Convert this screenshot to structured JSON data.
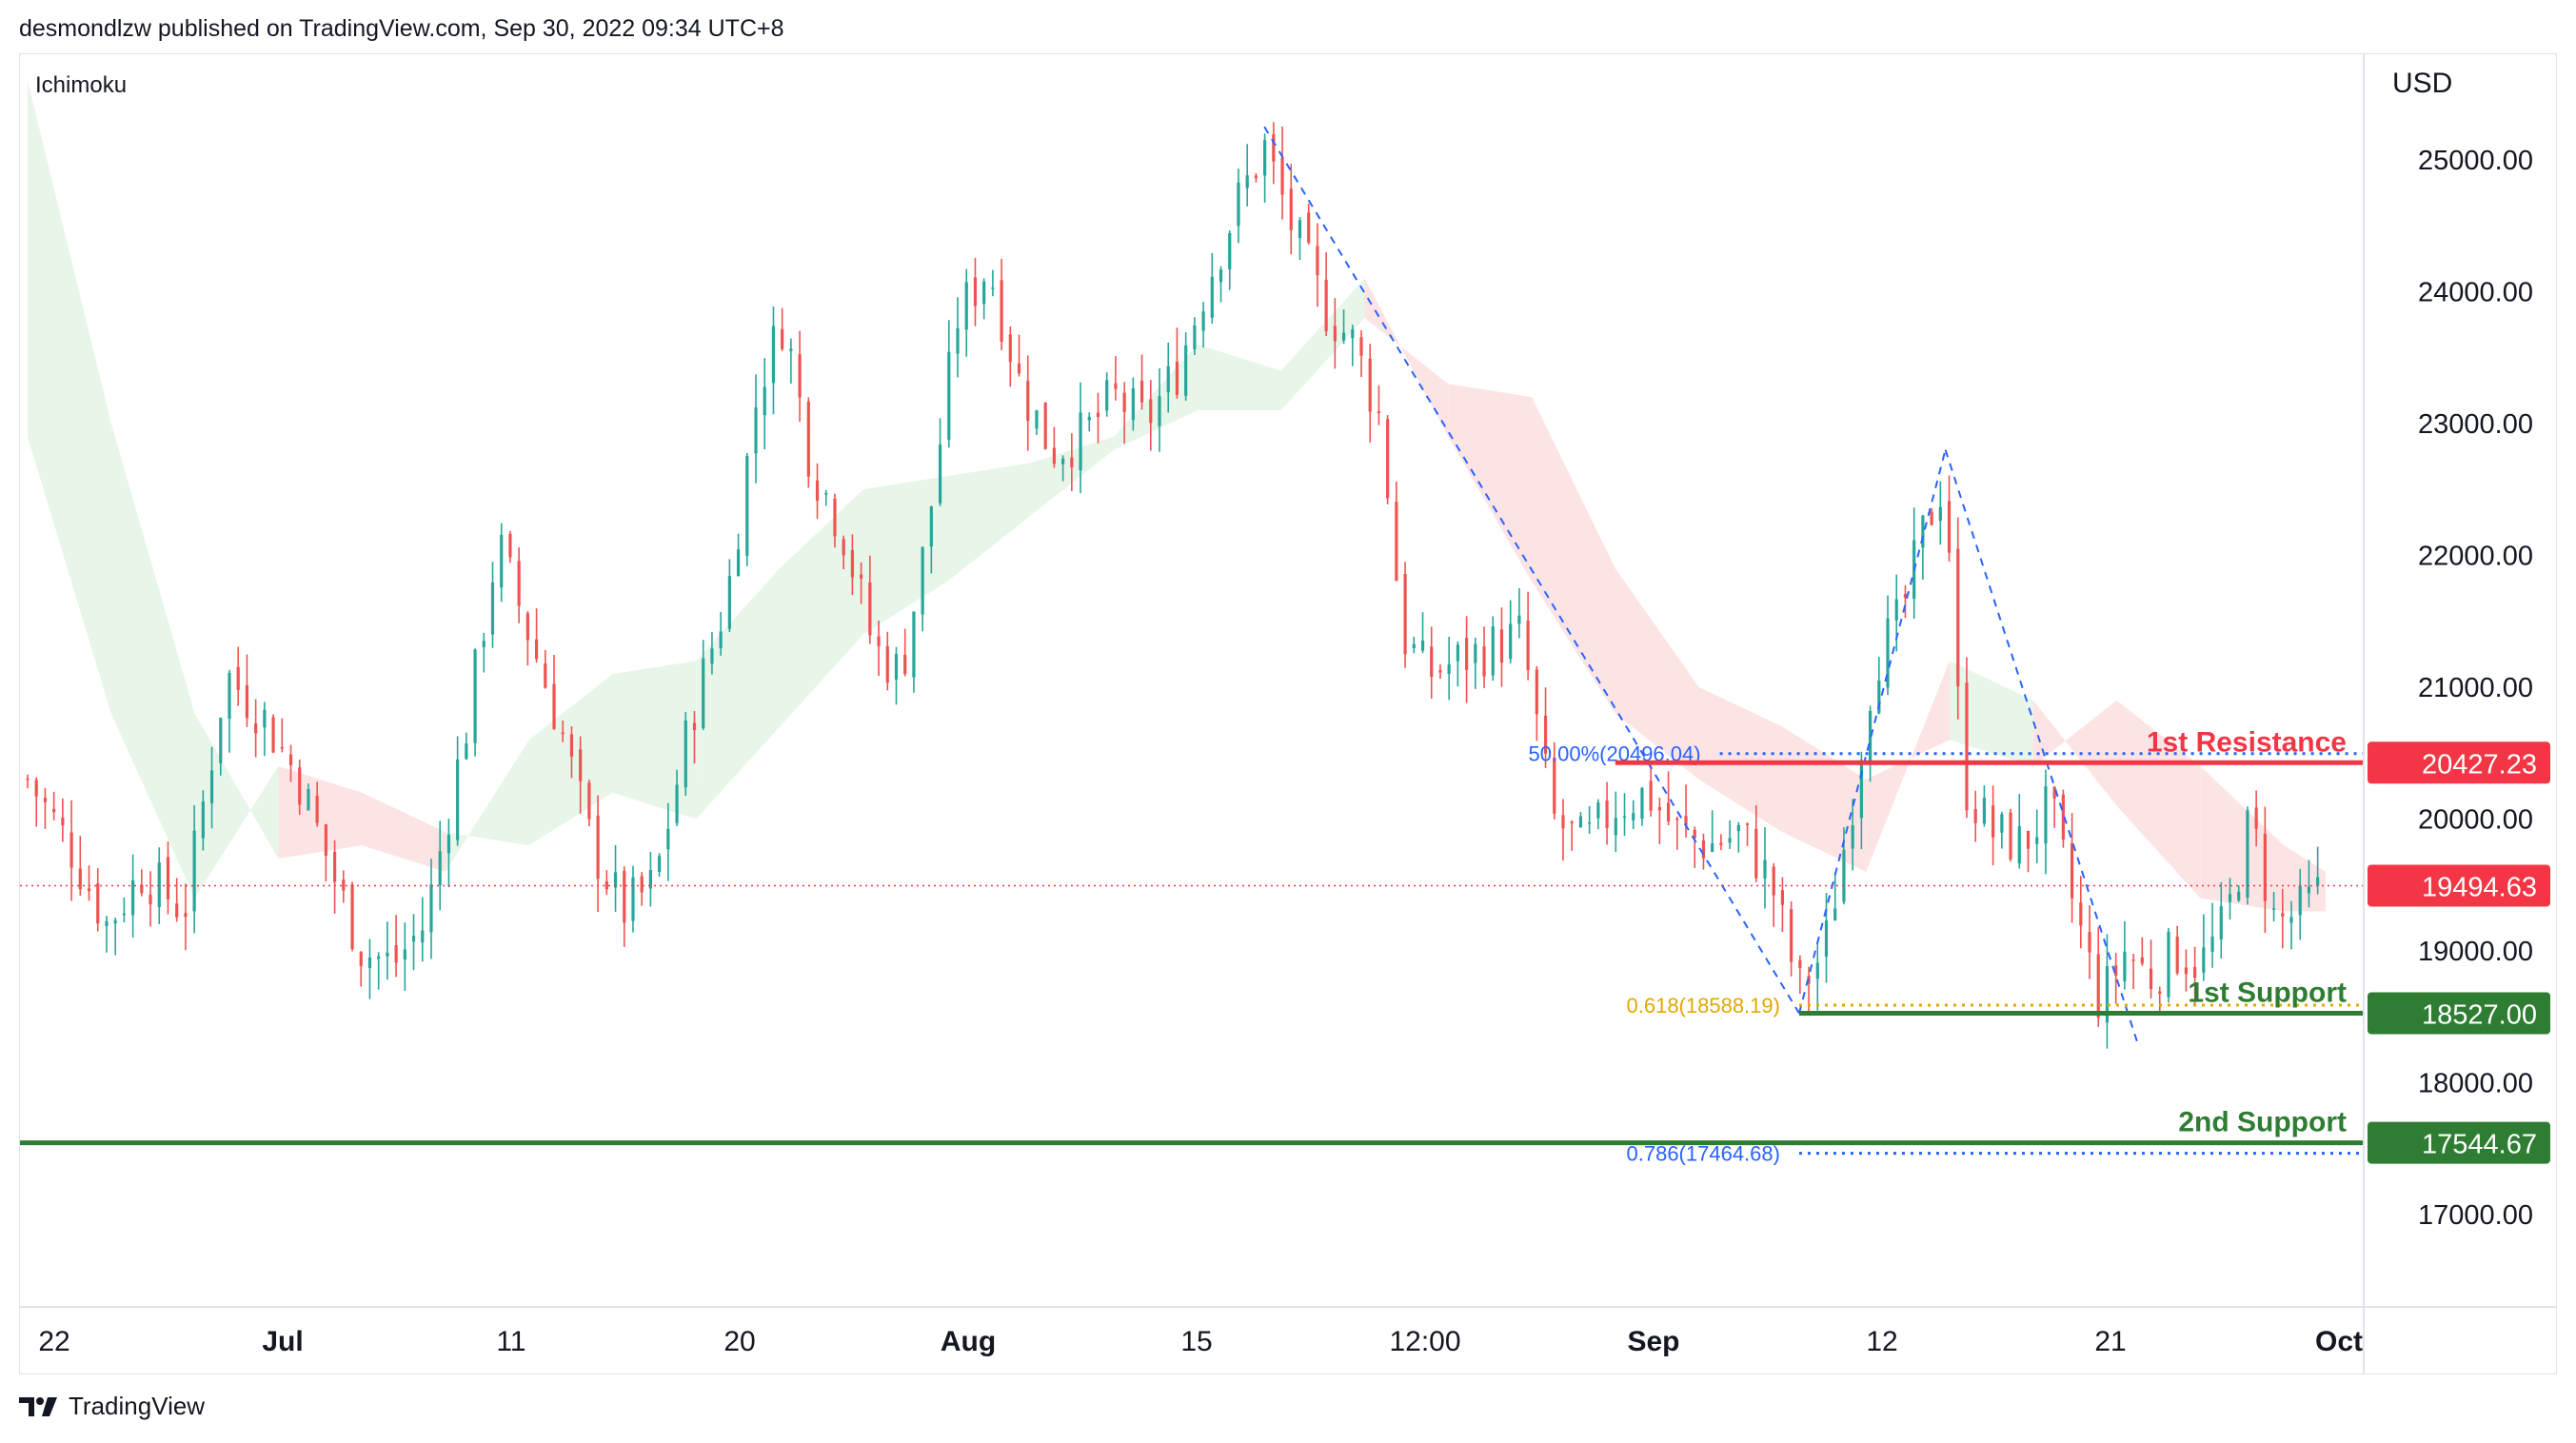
{
  "header": {
    "published_line": "desmondlzw published on TradingView.com, Sep 30, 2022 09:34 UTC+8"
  },
  "indicator": {
    "label": "Ichimoku"
  },
  "footer": {
    "brand": "TradingView"
  },
  "colors": {
    "up": "#26a69a",
    "down": "#ef5350",
    "resistance": "#f23645",
    "support": "#2e7d32",
    "fib_blue": "#2962ff",
    "fib_gold": "#e0a800",
    "cloud_bull": "#e8f5e9",
    "cloud_bear": "#fde4e4",
    "grid_text": "#131722",
    "current": "#f23645"
  },
  "chart_data": {
    "type": "candlestick",
    "symbol_currency": "USD",
    "ylim": [
      16300,
      25800
    ],
    "y_ticks": [
      {
        "value": 25000,
        "label": "25000.00"
      },
      {
        "value": 24000,
        "label": "24000.00"
      },
      {
        "value": 23000,
        "label": "23000.00"
      },
      {
        "value": 22000,
        "label": "22000.00"
      },
      {
        "value": 21000,
        "label": "21000.00"
      },
      {
        "value": 20000,
        "label": "20000.00"
      },
      {
        "value": 19000,
        "label": "19000.00"
      },
      {
        "value": 18000,
        "label": "18000.00"
      },
      {
        "value": 17000,
        "label": "17000.00"
      }
    ],
    "x_ticks": [
      {
        "label": "22",
        "bold": false
      },
      {
        "label": "Jul",
        "bold": true
      },
      {
        "label": "11",
        "bold": false
      },
      {
        "label": "20",
        "bold": false
      },
      {
        "label": "Aug",
        "bold": true
      },
      {
        "label": "15",
        "bold": false
      },
      {
        "label": "12:00",
        "bold": false
      },
      {
        "label": "Sep",
        "bold": true
      },
      {
        "label": "12",
        "bold": false
      },
      {
        "label": "21",
        "bold": false
      },
      {
        "label": "Oct",
        "bold": true
      }
    ],
    "price_path": [
      {
        "t": 0,
        "p": 20300
      },
      {
        "t": 20,
        "p": 19800
      },
      {
        "t": 38,
        "p": 19200
      },
      {
        "t": 55,
        "p": 19600
      },
      {
        "t": 75,
        "p": 19300
      },
      {
        "t": 95,
        "p": 21100
      },
      {
        "t": 112,
        "p": 20800
      },
      {
        "t": 130,
        "p": 20300
      },
      {
        "t": 148,
        "p": 19500
      },
      {
        "t": 160,
        "p": 19000
      },
      {
        "t": 175,
        "p": 18900
      },
      {
        "t": 190,
        "p": 19200
      },
      {
        "t": 210,
        "p": 20700
      },
      {
        "t": 225,
        "p": 22100
      },
      {
        "t": 240,
        "p": 21400
      },
      {
        "t": 255,
        "p": 20700
      },
      {
        "t": 270,
        "p": 19800
      },
      {
        "t": 285,
        "p": 19300
      },
      {
        "t": 300,
        "p": 19500
      },
      {
        "t": 318,
        "p": 20800
      },
      {
        "t": 335,
        "p": 21700
      },
      {
        "t": 350,
        "p": 23300
      },
      {
        "t": 362,
        "p": 23800
      },
      {
        "t": 375,
        "p": 22700
      },
      {
        "t": 390,
        "p": 22200
      },
      {
        "t": 405,
        "p": 21300
      },
      {
        "t": 418,
        "p": 21100
      },
      {
        "t": 430,
        "p": 22100
      },
      {
        "t": 445,
        "p": 23800
      },
      {
        "t": 460,
        "p": 24200
      },
      {
        "t": 475,
        "p": 23300
      },
      {
        "t": 490,
        "p": 22800
      },
      {
        "t": 505,
        "p": 22900
      },
      {
        "t": 520,
        "p": 23200
      },
      {
        "t": 535,
        "p": 23000
      },
      {
        "t": 550,
        "p": 23400
      },
      {
        "t": 565,
        "p": 24100
      },
      {
        "t": 580,
        "p": 24700
      },
      {
        "t": 592,
        "p": 25100
      },
      {
        "t": 605,
        "p": 24500
      },
      {
        "t": 620,
        "p": 23900
      },
      {
        "t": 635,
        "p": 23600
      },
      {
        "t": 648,
        "p": 23000
      },
      {
        "t": 658,
        "p": 21400
      },
      {
        "t": 670,
        "p": 21100
      },
      {
        "t": 685,
        "p": 21200
      },
      {
        "t": 700,
        "p": 21300
      },
      {
        "t": 715,
        "p": 21400
      },
      {
        "t": 730,
        "p": 20000
      },
      {
        "t": 745,
        "p": 19800
      },
      {
        "t": 760,
        "p": 20100
      },
      {
        "t": 775,
        "p": 20200
      },
      {
        "t": 790,
        "p": 19900
      },
      {
        "t": 805,
        "p": 19800
      },
      {
        "t": 820,
        "p": 19900
      },
      {
        "t": 835,
        "p": 19500
      },
      {
        "t": 848,
        "p": 18700
      },
      {
        "t": 860,
        "p": 19000
      },
      {
        "t": 872,
        "p": 20000
      },
      {
        "t": 884,
        "p": 21200
      },
      {
        "t": 896,
        "p": 21500
      },
      {
        "t": 908,
        "p": 22200
      },
      {
        "t": 918,
        "p": 22600
      },
      {
        "t": 926,
        "p": 20300
      },
      {
        "t": 940,
        "p": 19900
      },
      {
        "t": 955,
        "p": 19800
      },
      {
        "t": 968,
        "p": 20100
      },
      {
        "t": 980,
        "p": 19300
      },
      {
        "t": 992,
        "p": 18600
      },
      {
        "t": 1004,
        "p": 19000
      },
      {
        "t": 1016,
        "p": 18800
      },
      {
        "t": 1028,
        "p": 19000
      },
      {
        "t": 1040,
        "p": 18900
      },
      {
        "t": 1052,
        "p": 19200
      },
      {
        "t": 1064,
        "p": 20000
      },
      {
        "t": 1076,
        "p": 19200
      },
      {
        "t": 1088,
        "p": 19300
      },
      {
        "t": 1100,
        "p": 19494.63
      }
    ],
    "ichimoku_cloud": [
      {
        "t": 0,
        "a": 25600,
        "b": 22900
      },
      {
        "t": 40,
        "a": 23000,
        "b": 20800
      },
      {
        "t": 80,
        "a": 20800,
        "b": 19400
      },
      {
        "t": 120,
        "a": 19700,
        "b": 20400
      },
      {
        "t": 160,
        "a": 19800,
        "b": 20200
      },
      {
        "t": 200,
        "a": 19600,
        "b": 19900
      },
      {
        "t": 240,
        "a": 20600,
        "b": 19800
      },
      {
        "t": 280,
        "a": 21100,
        "b": 20200
      },
      {
        "t": 320,
        "a": 21200,
        "b": 20000
      },
      {
        "t": 360,
        "a": 21900,
        "b": 20700
      },
      {
        "t": 400,
        "a": 22500,
        "b": 21400
      },
      {
        "t": 440,
        "a": 22600,
        "b": 21800
      },
      {
        "t": 480,
        "a": 22700,
        "b": 22300
      },
      {
        "t": 520,
        "a": 22900,
        "b": 22800
      },
      {
        "t": 560,
        "a": 23600,
        "b": 23100
      },
      {
        "t": 600,
        "a": 23400,
        "b": 23100
      },
      {
        "t": 640,
        "a": 24100,
        "b": 23800
      },
      {
        "t": 680,
        "a": 22900,
        "b": 23300
      },
      {
        "t": 720,
        "a": 21800,
        "b": 23200
      },
      {
        "t": 760,
        "a": 20800,
        "b": 21900
      },
      {
        "t": 800,
        "a": 20300,
        "b": 21000
      },
      {
        "t": 840,
        "a": 19900,
        "b": 20700
      },
      {
        "t": 880,
        "a": 19600,
        "b": 20300
      },
      {
        "t": 920,
        "a": 21200,
        "b": 20600
      },
      {
        "t": 960,
        "a": 20900,
        "b": 20400
      },
      {
        "t": 1000,
        "a": 20100,
        "b": 20900
      },
      {
        "t": 1040,
        "a": 19400,
        "b": 20400
      },
      {
        "t": 1080,
        "a": 19300,
        "b": 19800
      },
      {
        "t": 1100,
        "a": 19300,
        "b": 19600
      }
    ],
    "fib_drawings": [
      {
        "from": {
          "t": 592,
          "p": 25250
        },
        "to": {
          "t": 848,
          "p": 18527
        }
      },
      {
        "from": {
          "t": 848,
          "p": 18527
        },
        "to": {
          "t": 918,
          "p": 22800
        }
      },
      {
        "from": {
          "t": 918,
          "p": 22800
        },
        "to": {
          "t": 1010,
          "p": 18300
        }
      }
    ],
    "levels": [
      {
        "name": "1st Resistance",
        "value": 20427.23,
        "label": "20427.23",
        "kind": "resistance",
        "start_t": 760
      },
      {
        "name": "1st Support",
        "value": 18527.0,
        "label": "18527.00",
        "kind": "support",
        "start_t": 848
      },
      {
        "name": "2nd Support",
        "value": 17544.67,
        "label": "17544.67",
        "kind": "support",
        "start_t": 0
      }
    ],
    "fib_levels": [
      {
        "label": "50.00%(20496.04)",
        "value": 20496.04,
        "color_key": "fib_blue",
        "start_t": 810
      },
      {
        "label": "0.618(18588.19)",
        "value": 18588.19,
        "color_key": "fib_gold",
        "start_t": 848
      },
      {
        "label": "0.786(17464.68)",
        "value": 17464.68,
        "color_key": "fib_blue",
        "start_t": 848
      }
    ],
    "current_price": {
      "value": 19494.63,
      "label": "19494.63"
    }
  }
}
